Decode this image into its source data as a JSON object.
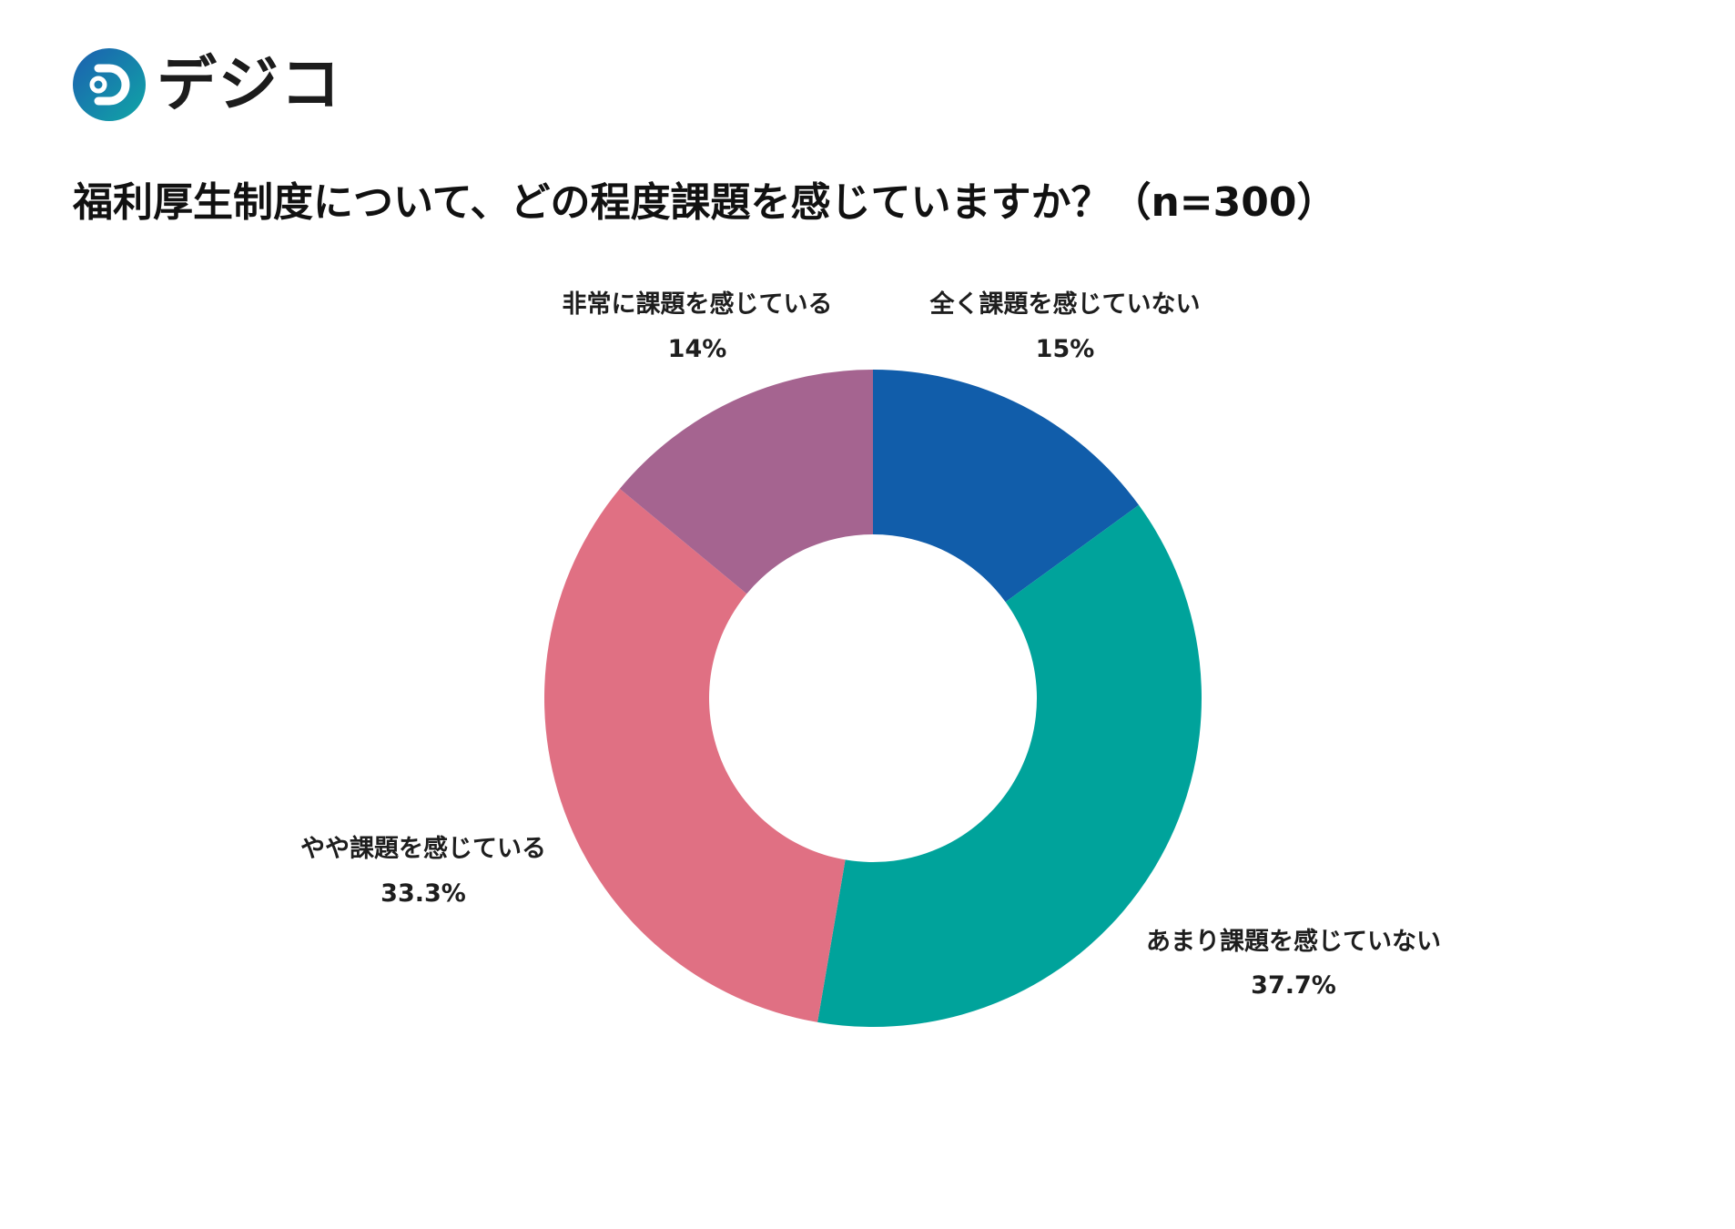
{
  "logo": {
    "text": "デジコ"
  },
  "chart_data": {
    "type": "pie",
    "donut": true,
    "title": "福利厚生制度について、どの程度課題を感じていますか？（n=300）",
    "categories": [
      "全く課題を感じていない",
      "あまり課題を感じていない",
      "やや課題を感じている",
      "非常に課題を感じている"
    ],
    "values": [
      15,
      37.7,
      33.3,
      14
    ],
    "value_labels": [
      "15%",
      "37.7%",
      "33.3%",
      "14%"
    ],
    "colors": [
      "#115DAA",
      "#00A39B",
      "#E07083",
      "#A56490"
    ]
  }
}
